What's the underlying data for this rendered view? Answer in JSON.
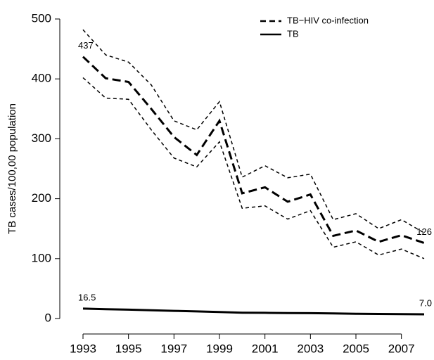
{
  "chart_data": {
    "type": "line",
    "ylabel": "TB cases/100,00 population",
    "x": [
      1993,
      1994,
      1995,
      1996,
      1997,
      1998,
      1999,
      2000,
      2001,
      2002,
      2003,
      2004,
      2005,
      2006,
      2007,
      2008
    ],
    "xlim": [
      1993,
      2008
    ],
    "xticks": [
      1993,
      1995,
      1997,
      1999,
      2001,
      2003,
      2005,
      2007
    ],
    "ylim": [
      0,
      500
    ],
    "yticks": [
      0,
      100,
      200,
      300,
      400,
      500
    ],
    "series": [
      {
        "name": "TB−HIV co-infection",
        "color": "#000000",
        "dashed": true,
        "values": [
          437,
          401,
          395,
          350,
          303,
          273,
          330,
          209,
          219,
          195,
          207,
          138,
          147,
          128,
          139,
          126
        ],
        "value_labels": [
          "437",
          null,
          null,
          null,
          null,
          null,
          null,
          null,
          null,
          null,
          null,
          null,
          null,
          null,
          null,
          "126"
        ],
        "upper": [
          482,
          440,
          428,
          390,
          330,
          315,
          362,
          236,
          255,
          235,
          241,
          165,
          175,
          150,
          165,
          143
        ],
        "lower": [
          402,
          368,
          366,
          315,
          268,
          253,
          295,
          184,
          188,
          166,
          180,
          119,
          128,
          106,
          116,
          100
        ]
      },
      {
        "name": "TB",
        "color": "#000000",
        "dashed": false,
        "values": [
          16.5,
          15.5,
          14.8,
          13.8,
          12.8,
          11.8,
          10.8,
          9.8,
          9.5,
          9.2,
          8.9,
          8.4,
          8.0,
          7.6,
          7.3,
          7.0
        ],
        "value_labels": [
          "16.5",
          null,
          null,
          null,
          null,
          null,
          null,
          null,
          null,
          null,
          null,
          null,
          null,
          null,
          null,
          "7.0"
        ]
      }
    ],
    "legend": "top-right"
  }
}
